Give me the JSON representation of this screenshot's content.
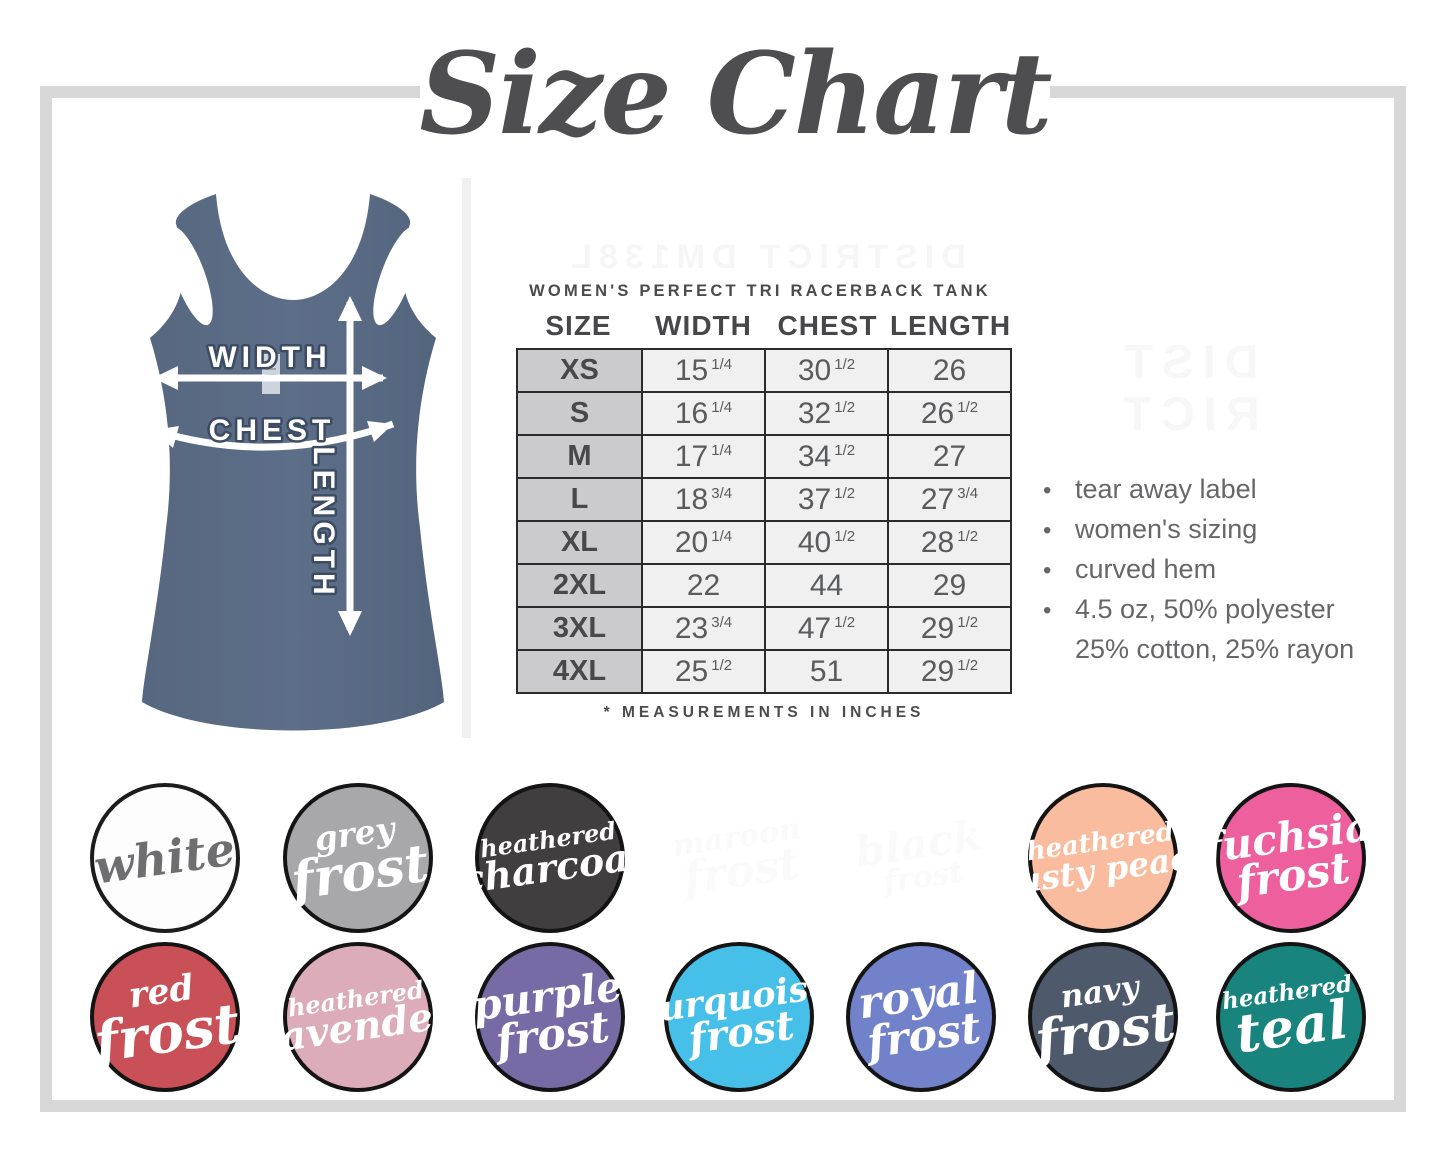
{
  "title": "Size Chart",
  "watermarks": {
    "top": "DISTRICT DM138L",
    "side_line1": "DIST",
    "side_line2": "RICT"
  },
  "product": {
    "subtitle": "WOMEN'S PERFECT TRI RACERBACK TANK",
    "measurement_note": "* MEASUREMENTS IN INCHES",
    "diagram_labels": {
      "width": "WIDTH",
      "chest": "CHEST",
      "length": "LENGTH"
    },
    "features": [
      [
        "tear away label"
      ],
      [
        "women's sizing"
      ],
      [
        "curved hem"
      ],
      [
        "4.5 oz, 50% polyester",
        "25% cotton, 25% rayon"
      ]
    ],
    "tank_color_hex": "#5a6b84"
  },
  "size_table": {
    "columns": [
      "SIZE",
      "WIDTH",
      "CHEST",
      "LENGTH"
    ],
    "unit": "inches",
    "rows": [
      {
        "size": "XS",
        "width": {
          "n": "15",
          "f": "1/4"
        },
        "chest": {
          "n": "30",
          "f": "1/2"
        },
        "length": {
          "n": "26",
          "f": ""
        }
      },
      {
        "size": "S",
        "width": {
          "n": "16",
          "f": "1/4"
        },
        "chest": {
          "n": "32",
          "f": "1/2"
        },
        "length": {
          "n": "26",
          "f": "1/2"
        }
      },
      {
        "size": "M",
        "width": {
          "n": "17",
          "f": "1/4"
        },
        "chest": {
          "n": "34",
          "f": "1/2"
        },
        "length": {
          "n": "27",
          "f": ""
        }
      },
      {
        "size": "L",
        "width": {
          "n": "18",
          "f": "3/4"
        },
        "chest": {
          "n": "37",
          "f": "1/2"
        },
        "length": {
          "n": "27",
          "f": "3/4"
        }
      },
      {
        "size": "XL",
        "width": {
          "n": "20",
          "f": "1/4"
        },
        "chest": {
          "n": "40",
          "f": "1/2"
        },
        "length": {
          "n": "28",
          "f": "1/2"
        }
      },
      {
        "size": "2XL",
        "width": {
          "n": "22",
          "f": ""
        },
        "chest": {
          "n": "44",
          "f": ""
        },
        "length": {
          "n": "29",
          "f": ""
        }
      },
      {
        "size": "3XL",
        "width": {
          "n": "23",
          "f": "3/4"
        },
        "chest": {
          "n": "47",
          "f": "1/2"
        },
        "length": {
          "n": "29",
          "f": "1/2"
        }
      },
      {
        "size": "4XL",
        "width": {
          "n": "25",
          "f": "1/2"
        },
        "chest": {
          "n": "51",
          "f": ""
        },
        "length": {
          "n": "29",
          "f": "1/2"
        }
      }
    ]
  },
  "swatches": {
    "row1": [
      {
        "name": "white",
        "bg": "#fdfdfd",
        "text": "#6e6e71",
        "border": "#1c1c1c",
        "lines": [
          {
            "t": "white",
            "fs": 46
          }
        ]
      },
      {
        "name": "grey frost",
        "bg": "#a8a8aa",
        "text": "#ffffff",
        "border": "#141414",
        "lines": [
          {
            "t": "grey",
            "fs": 33
          },
          {
            "t": "frost",
            "fs": 52
          }
        ]
      },
      {
        "name": "heathered charcoal",
        "bg": "#403e3f",
        "text": "#ffffff",
        "border": "#141414",
        "lines": [
          {
            "t": "heathered",
            "fs": 24
          },
          {
            "t": "charcoal",
            "fs": 38
          }
        ]
      },
      {
        "name": "maroon frost",
        "bg": "#ffffff",
        "text": "#fafafa",
        "border": "",
        "lines": [
          {
            "t": "maroon",
            "fs": 30
          },
          {
            "t": "frost",
            "fs": 44
          }
        ]
      },
      {
        "name": "black frost",
        "bg": "#ffffff",
        "text": "#fafafa",
        "border": "",
        "lines": [
          {
            "t": "black",
            "fs": 42
          },
          {
            "t": "frost",
            "fs": 30
          }
        ]
      },
      {
        "name": "heathered dusty peach",
        "bg": "#f9bc9e",
        "text": "#ffffff",
        "border": "#141414",
        "lines": [
          {
            "t": "heathered",
            "fs": 26
          },
          {
            "t": "dusty peach",
            "fs": 33
          }
        ]
      },
      {
        "name": "fuchsia frost",
        "bg": "#ee5f9e",
        "text": "#ffffff",
        "border": "#141414",
        "lines": [
          {
            "t": "fuchsia",
            "fs": 41
          },
          {
            "t": "frost",
            "fs": 43
          }
        ]
      }
    ],
    "row2": [
      {
        "name": "red frost",
        "bg": "#c85056",
        "text": "#ffffff",
        "border": "#141414",
        "lines": [
          {
            "t": "red",
            "fs": 35
          },
          {
            "t": "frost",
            "fs": 55
          }
        ]
      },
      {
        "name": "heathered lavender",
        "bg": "#dcacb8",
        "text": "#ffffff",
        "border": "#141414",
        "lines": [
          {
            "t": "heathered",
            "fs": 24
          },
          {
            "t": "lavender",
            "fs": 39
          }
        ]
      },
      {
        "name": "purple frost",
        "bg": "#776aa5",
        "text": "#ffffff",
        "border": "#141414",
        "lines": [
          {
            "t": "purple",
            "fs": 41
          },
          {
            "t": "frost",
            "fs": 43
          }
        ]
      },
      {
        "name": "turquoise frost",
        "bg": "#47c0e9",
        "text": "#ffffff",
        "border": "#141414",
        "lines": [
          {
            "t": "turquoise",
            "fs": 35
          },
          {
            "t": "frost",
            "fs": 40
          }
        ]
      },
      {
        "name": "royal frost",
        "bg": "#7181ca",
        "text": "#ffffff",
        "border": "#141414",
        "lines": [
          {
            "t": "royal",
            "fs": 43
          },
          {
            "t": "frost",
            "fs": 43
          }
        ]
      },
      {
        "name": "navy frost",
        "bg": "#4e596c",
        "text": "#ffffff",
        "border": "#141414",
        "lines": [
          {
            "t": "navy",
            "fs": 31
          },
          {
            "t": "frost",
            "fs": 53
          }
        ]
      },
      {
        "name": "heathered teal",
        "bg": "#19837e",
        "text": "#ffffff",
        "border": "#141414",
        "lines": [
          {
            "t": "heathered",
            "fs": 23
          },
          {
            "t": "teal",
            "fs": 53
          }
        ]
      }
    ]
  },
  "frame_color": "#d8d8d8"
}
